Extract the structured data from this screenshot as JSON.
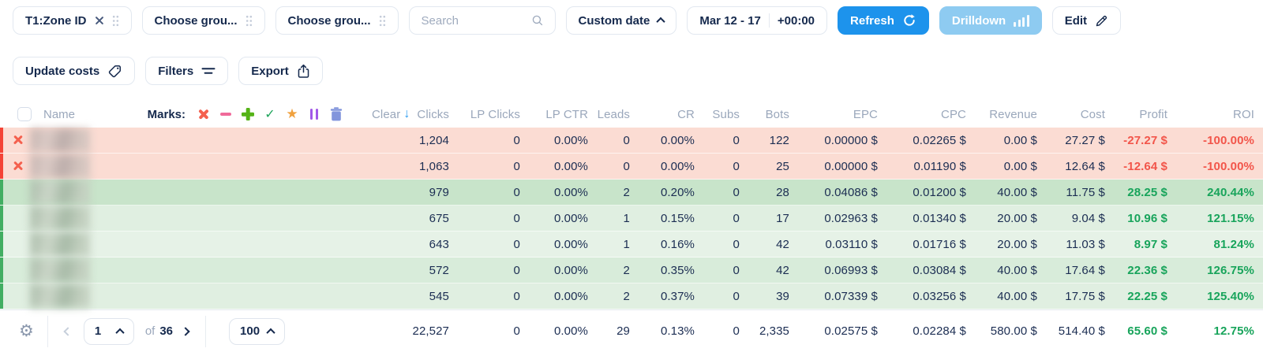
{
  "toolbar": {
    "zone_chip": "T1:Zone ID",
    "group_chip_1": "Choose grou...",
    "group_chip_2": "Choose grou...",
    "search_placeholder": "Search",
    "date_preset": "Custom date",
    "date_range": "Mar 12 - 17",
    "timezone": "+00:00",
    "refresh": "Refresh",
    "drilldown": "Drilldown",
    "edit": "Edit"
  },
  "actions": {
    "update_costs": "Update costs",
    "filters": "Filters",
    "export": "Export"
  },
  "table": {
    "marks_label": "Marks:",
    "clear_label": "Clear",
    "columns": [
      "Name",
      "Clicks",
      "LP Clicks",
      "LP CTR",
      "Leads",
      "CR",
      "Subs",
      "Bots",
      "EPC",
      "CPC",
      "Revenue",
      "Cost",
      "Profit",
      "ROI"
    ],
    "rows": [
      {
        "status": "loss",
        "marked": true,
        "bg": "#fbdcd3",
        "stripe": "#f44336",
        "values": [
          "1,204",
          "0",
          "0.00%",
          "0",
          "0.00%",
          "0",
          "122",
          "0.00000 $",
          "0.02265 $",
          "0.00 $",
          "27.27 $",
          "-27.27 $",
          "-100.00%"
        ]
      },
      {
        "status": "loss",
        "marked": true,
        "bg": "#fbdcd3",
        "stripe": "#f44336",
        "values": [
          "1,063",
          "0",
          "0.00%",
          "0",
          "0.00%",
          "0",
          "25",
          "0.00000 $",
          "0.01190 $",
          "0.00 $",
          "12.64 $",
          "-12.64 $",
          "-100.00%"
        ]
      },
      {
        "status": "profit",
        "marked": false,
        "bg": "#c8e4ca",
        "stripe": "#42ae62",
        "values": [
          "979",
          "0",
          "0.00%",
          "2",
          "0.20%",
          "0",
          "28",
          "0.04086 $",
          "0.01200 $",
          "40.00 $",
          "11.75 $",
          "28.25 $",
          "240.44%"
        ]
      },
      {
        "status": "profit",
        "marked": false,
        "bg": "#e0efe1",
        "stripe": "#42ae62",
        "values": [
          "675",
          "0",
          "0.00%",
          "1",
          "0.15%",
          "0",
          "17",
          "0.02963 $",
          "0.01340 $",
          "20.00 $",
          "9.04 $",
          "10.96 $",
          "121.15%"
        ]
      },
      {
        "status": "profit",
        "marked": false,
        "bg": "#e6f2e7",
        "stripe": "#42ae62",
        "values": [
          "643",
          "0",
          "0.00%",
          "1",
          "0.16%",
          "0",
          "42",
          "0.03110 $",
          "0.01716 $",
          "20.00 $",
          "11.03 $",
          "8.97 $",
          "81.24%"
        ]
      },
      {
        "status": "profit",
        "marked": false,
        "bg": "#d8ecda",
        "stripe": "#42ae62",
        "values": [
          "572",
          "0",
          "0.00%",
          "2",
          "0.35%",
          "0",
          "42",
          "0.06993 $",
          "0.03084 $",
          "40.00 $",
          "17.64 $",
          "22.36 $",
          "126.75%"
        ]
      },
      {
        "status": "profit",
        "marked": false,
        "bg": "#e0efe1",
        "stripe": "#42ae62",
        "values": [
          "545",
          "0",
          "0.00%",
          "2",
          "0.37%",
          "0",
          "39",
          "0.07339 $",
          "0.03256 $",
          "40.00 $",
          "17.75 $",
          "22.25 $",
          "125.40%"
        ]
      }
    ]
  },
  "footer": {
    "page": "1",
    "of_label": "of",
    "total_pages": "36",
    "per_page": "100",
    "positive_from_index": 11,
    "totals": [
      "22,527",
      "0",
      "0.00%",
      "29",
      "0.13%",
      "0",
      "2,335",
      "0.02575 $",
      "0.02284 $",
      "580.00 $",
      "514.40 $",
      "65.60 $",
      "12.75%"
    ]
  },
  "icons": {
    "sort_down": "↓",
    "star": "★",
    "check": "✓",
    "gear": "⚙"
  },
  "colors": {
    "accent_blue": "#1d93ec",
    "drilldown_blue": "#8ecbf1",
    "navy_text": "#15294d",
    "header_gray": "#9aa7bb",
    "negative_text": "#f2554a",
    "positive_text": "#18a45b",
    "loss_row_bg": "#fbdcd3",
    "profit_row_bg": "#e0efe1",
    "loss_stripe": "#f44336",
    "profit_stripe": "#42ae62",
    "marks": {
      "cross": "#f4604e",
      "minus": "#f06a9a",
      "plus": "#55b317",
      "check": "#1fa55c",
      "star": "#f0a13e",
      "pause": "#a158e8",
      "trash": "#8295dc"
    }
  }
}
